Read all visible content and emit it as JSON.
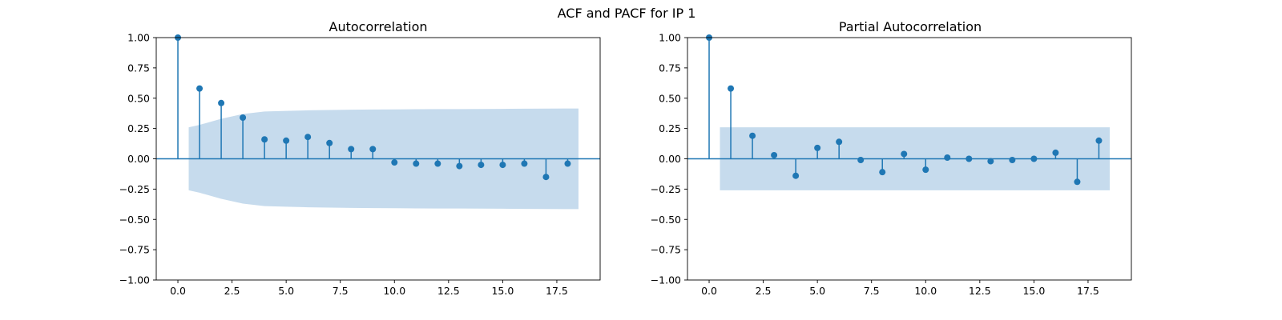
{
  "figure": {
    "title": "ACF and PACF for IP 1"
  },
  "style": {
    "stem_color": "#1f77b4",
    "band_color": "#c6dbed",
    "axis_color": "#000000"
  },
  "chart_data": [
    {
      "type": "stem",
      "title": "Autocorrelation",
      "xlabel": "",
      "ylabel": "",
      "xlim": [
        -1,
        19.5
      ],
      "ylim": [
        -1.0,
        1.0
      ],
      "x_ticks": [
        "0.0",
        "2.5",
        "5.0",
        "7.5",
        "10.0",
        "12.5",
        "15.0",
        "17.5"
      ],
      "y_ticks": [
        "1.00",
        "0.75",
        "0.50",
        "0.25",
        "0.00",
        "−0.25",
        "−0.50",
        "−0.75",
        "−1.00"
      ],
      "lags": [
        0,
        1,
        2,
        3,
        4,
        5,
        6,
        7,
        8,
        9,
        10,
        11,
        12,
        13,
        14,
        15,
        16,
        17,
        18
      ],
      "values": [
        1.0,
        0.58,
        0.46,
        0.34,
        0.16,
        0.15,
        0.18,
        0.13,
        0.08,
        0.08,
        -0.03,
        -0.04,
        -0.04,
        -0.06,
        -0.05,
        -0.05,
        -0.04,
        -0.15,
        -0.04
      ],
      "confidence_band": {
        "x": [
          0.5,
          1,
          2,
          3,
          4,
          5,
          6,
          7,
          8,
          9,
          10,
          11,
          12,
          13,
          14,
          15,
          16,
          17,
          18,
          18.5
        ],
        "upper": [
          0.26,
          0.28,
          0.33,
          0.37,
          0.39,
          0.395,
          0.4,
          0.403,
          0.405,
          0.407,
          0.408,
          0.409,
          0.41,
          0.41,
          0.411,
          0.412,
          0.413,
          0.414,
          0.415,
          0.415
        ]
      }
    },
    {
      "type": "stem",
      "title": "Partial Autocorrelation",
      "xlabel": "",
      "ylabel": "",
      "xlim": [
        -1,
        19.5
      ],
      "ylim": [
        -1.0,
        1.0
      ],
      "x_ticks": [
        "0.0",
        "2.5",
        "5.0",
        "7.5",
        "10.0",
        "12.5",
        "15.0",
        "17.5"
      ],
      "y_ticks": [
        "1.00",
        "0.75",
        "0.50",
        "0.25",
        "0.00",
        "−0.25",
        "−0.50",
        "−0.75",
        "−1.00"
      ],
      "lags": [
        0,
        1,
        2,
        3,
        4,
        5,
        6,
        7,
        8,
        9,
        10,
        11,
        12,
        13,
        14,
        15,
        16,
        17,
        18
      ],
      "values": [
        1.0,
        0.58,
        0.19,
        0.03,
        -0.14,
        0.09,
        0.14,
        -0.01,
        -0.11,
        0.04,
        -0.09,
        0.01,
        0.0,
        -0.02,
        -0.01,
        0.0,
        0.05,
        -0.19,
        0.15
      ],
      "confidence_band": {
        "x": [
          0.5,
          18.5
        ],
        "upper": [
          0.26,
          0.26
        ]
      }
    }
  ]
}
